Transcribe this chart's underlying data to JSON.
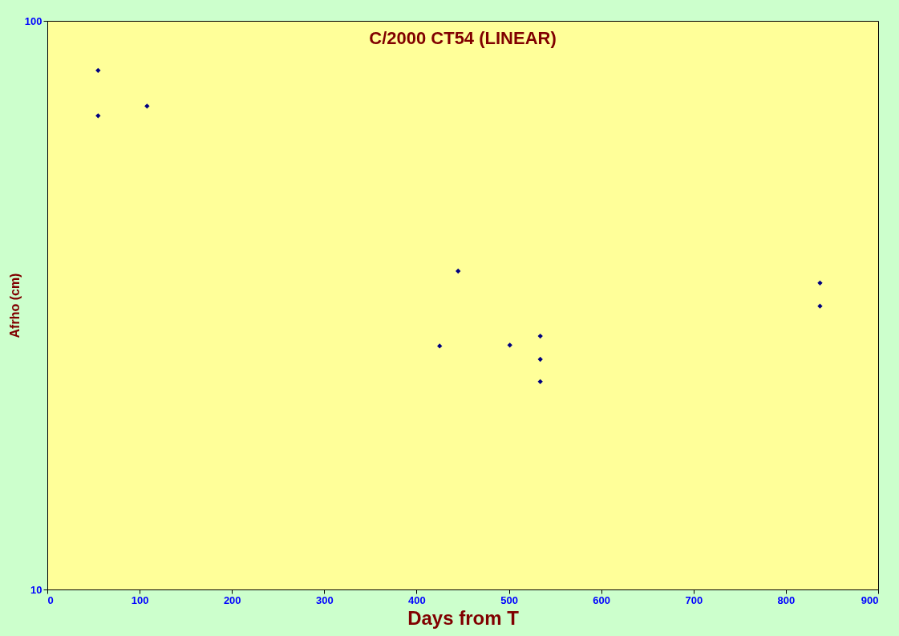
{
  "chart_data": {
    "type": "scatter",
    "title": "C/2000 CT54 (LINEAR)",
    "xlabel": "Days from T",
    "ylabel": "Afrho (cm)",
    "x": [
      55,
      55,
      108,
      425,
      445,
      501,
      534,
      534,
      534,
      837,
      837
    ],
    "series": [
      {
        "color": "#000080",
        "values": [
          81.8,
          68.1,
          70.8,
          26.8,
          36.3,
          26.9,
          27.9,
          25.4,
          23.2,
          34.6,
          31.5
        ]
      }
    ],
    "xlim": [
      0,
      900
    ],
    "xticks": [
      0,
      100,
      200,
      300,
      400,
      500,
      600,
      700,
      800,
      900
    ],
    "ylim": [
      10,
      100
    ],
    "yticks": [
      10,
      100
    ],
    "log": "y",
    "grid": false,
    "marker": "diamond"
  }
}
